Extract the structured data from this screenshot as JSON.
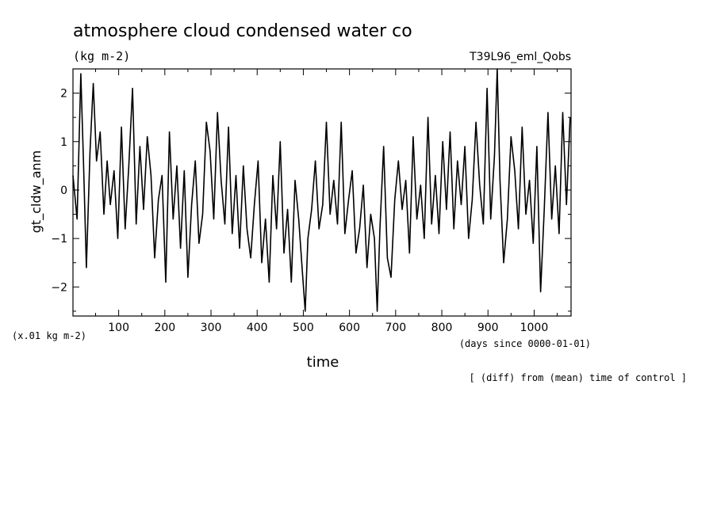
{
  "chart_data": {
    "type": "line",
    "title": "atmosphere cloud condensed water co",
    "units": "(kg m-2)",
    "run_label": "T39L96_eml_Qobs",
    "ylabel": "gt_cldw_anm",
    "y_multiplier": "(x.01 kg m-2)",
    "xlabel": "time",
    "x_units": "(days since 0000-01-01)",
    "footnote": "[ (diff) from (mean) time of control ]",
    "xlim": [
      1,
      1080
    ],
    "ylim": [
      -2.6,
      2.5
    ],
    "x_ticks": [
      100,
      200,
      300,
      400,
      500,
      600,
      700,
      800,
      900,
      1000
    ],
    "y_ticks": [
      -2,
      -1,
      0,
      1,
      2
    ],
    "x_tick_labels": [
      "100",
      "200",
      "300",
      "400",
      "500",
      "600",
      "700",
      "800",
      "900",
      "1000"
    ],
    "y_tick_labels": [
      "−2",
      "−1",
      "0",
      "1",
      "2"
    ],
    "grid": false,
    "line_color": "#000000",
    "series": [
      {
        "x": [
          1,
          10,
          18,
          24,
          30,
          38,
          45,
          52,
          60,
          68,
          75,
          82,
          90,
          98,
          106,
          114,
          122,
          130,
          138,
          146,
          154,
          162,
          170,
          178,
          186,
          194,
          202,
          210,
          218,
          226,
          234,
          242,
          250,
          258,
          266,
          274,
          282,
          290,
          298,
          306,
          314,
          322,
          330,
          338,
          346,
          354,
          362,
          370,
          378,
          386,
          394,
          402,
          410,
          418,
          426,
          434,
          442,
          450,
          458,
          466,
          474,
          482,
          490,
          498,
          504,
          510,
          518,
          526,
          534,
          542,
          550,
          558,
          566,
          574,
          582,
          590,
          598,
          606,
          614,
          622,
          630,
          638,
          646,
          654,
          660,
          666,
          674,
          682,
          690,
          698,
          706,
          714,
          722,
          730,
          738,
          746,
          754,
          762,
          770,
          778,
          786,
          794,
          802,
          810,
          818,
          826,
          834,
          842,
          850,
          858,
          866,
          874,
          882,
          890,
          898,
          906,
          914,
          920,
          926,
          934,
          942,
          950,
          958,
          966,
          974,
          982,
          990,
          998,
          1006,
          1014,
          1022,
          1030,
          1038,
          1046,
          1054,
          1062,
          1070,
          1078
        ],
        "y": [
          0.3,
          -0.6,
          2.4,
          0.5,
          -1.6,
          0.8,
          2.2,
          0.6,
          1.2,
          -0.5,
          0.6,
          -0.3,
          0.4,
          -1.0,
          1.3,
          -0.8,
          0.5,
          2.1,
          -0.7,
          0.9,
          -0.4,
          1.1,
          0.3,
          -1.4,
          -0.2,
          0.3,
          -1.9,
          1.2,
          -0.6,
          0.5,
          -1.2,
          0.4,
          -1.8,
          -0.3,
          0.6,
          -1.1,
          -0.5,
          1.4,
          0.8,
          -0.6,
          1.6,
          0.2,
          -0.7,
          1.3,
          -0.9,
          0.3,
          -1.2,
          0.5,
          -0.8,
          -1.4,
          -0.3,
          0.6,
          -1.5,
          -0.6,
          -1.9,
          0.3,
          -0.8,
          1.0,
          -1.3,
          -0.4,
          -1.9,
          0.2,
          -0.6,
          -1.7,
          -2.5,
          -1.0,
          -0.4,
          0.6,
          -0.8,
          -0.3,
          1.4,
          -0.5,
          0.2,
          -0.7,
          1.4,
          -0.9,
          -0.2,
          0.4,
          -1.3,
          -0.8,
          0.1,
          -1.6,
          -0.5,
          -1.0,
          -2.5,
          -0.8,
          0.9,
          -1.4,
          -1.8,
          -0.2,
          0.6,
          -0.4,
          0.2,
          -1.3,
          1.1,
          -0.6,
          0.1,
          -1.0,
          1.5,
          -0.7,
          0.3,
          -0.9,
          1.0,
          -0.4,
          1.2,
          -0.8,
          0.6,
          -0.3,
          0.9,
          -1.0,
          -0.2,
          1.4,
          0.1,
          -0.7,
          2.1,
          -0.6,
          0.7,
          2.5,
          0.2,
          -1.5,
          -0.6,
          1.1,
          0.4,
          -0.8,
          1.3,
          -0.5,
          0.2,
          -1.1,
          0.9,
          -2.1,
          -0.4,
          1.6,
          -0.6,
          0.5,
          -0.9,
          1.6,
          -0.3,
          1.5
        ]
      }
    ]
  }
}
